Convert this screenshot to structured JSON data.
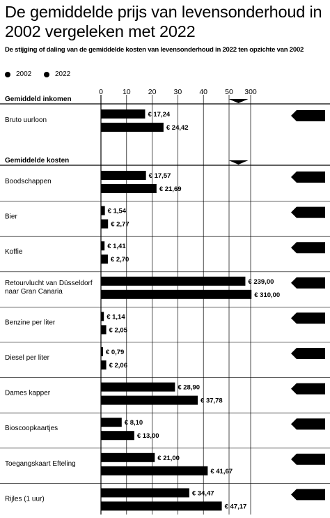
{
  "title": "De gemiddelde prijs van levensonderhoud in 2002 vergeleken met 2022",
  "subtitle": "De stijging of daling van de gemiddelde kosten van levensonderhoud in 2022 ten opzichte van 2002",
  "colors": {
    "bar": "#000000",
    "grid": "#000000",
    "background": "#ffffff"
  },
  "chart_data": {
    "type": "bar",
    "orientation": "horizontal",
    "legend": [
      "2002",
      "2022"
    ],
    "legend_position": "top-left",
    "x_ticks": [
      "0",
      "10",
      "20",
      "30",
      "40",
      "50",
      "300"
    ],
    "xlim": [
      0,
      300
    ],
    "axis_break": [
      50,
      300
    ],
    "grid": true,
    "sections": [
      {
        "title": "Gemiddeld inkomen",
        "items": [
          {
            "label": "Bruto uurloon",
            "values": [
              17.24
            ],
            "values_2022": 24.42,
            "labels": [
              "€ 17,24",
              "€ 24,42"
            ]
          }
        ]
      },
      {
        "title": "Gemiddelde kosten",
        "items": [
          {
            "label": "Boodschappen",
            "values": [
              17.57,
              21.69
            ],
            "labels": [
              "€ 17,57",
              "€ 21,69"
            ]
          },
          {
            "label": "Bier",
            "values": [
              1.54,
              2.77
            ],
            "labels": [
              "€ 1,54",
              "€ 2,77"
            ]
          },
          {
            "label": "Koffie",
            "values": [
              1.41,
              2.7
            ],
            "labels": [
              "€ 1,41",
              "€ 2,70"
            ]
          },
          {
            "label": "Retourvlucht van Düsseldorf naar Gran Canaria",
            "label_lines": [
              "Retourvlucht van Düsseldorf",
              "naar Gran Canaria"
            ],
            "values": [
              239.0,
              310.0
            ],
            "labels": [
              "€ 239,00",
              "€ 310,00"
            ]
          },
          {
            "label": "Benzine per liter",
            "values": [
              1.14,
              2.05
            ],
            "labels": [
              "€ 1,14",
              "€ 2,05"
            ]
          },
          {
            "label": "Diesel per liter",
            "values": [
              0.79,
              2.06
            ],
            "labels": [
              "€ 0,79",
              "€ 2,06"
            ]
          },
          {
            "label": "Dames kapper",
            "values": [
              28.9,
              37.78
            ],
            "labels": [
              "€ 28,90",
              "€ 37,78"
            ]
          },
          {
            "label": "Bioscoopkaartjes",
            "values": [
              8.1,
              13.0
            ],
            "labels": [
              "€ 8,10",
              "€ 13,00"
            ]
          },
          {
            "label": "Toegangskaart Efteling",
            "values": [
              21.0,
              41.67
            ],
            "labels": [
              "€ 21,00",
              "€ 41,67"
            ]
          },
          {
            "label": "Rijles (1 uur)",
            "values": [
              34.47,
              47.17
            ],
            "labels": [
              "€ 34,47",
              "€ 47,17"
            ]
          }
        ]
      }
    ]
  }
}
